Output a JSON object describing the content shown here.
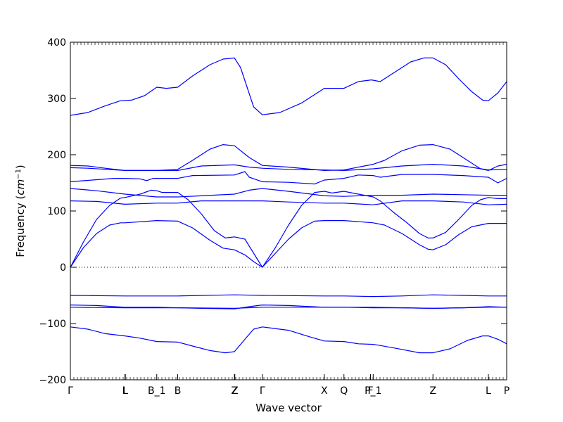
{
  "chart_data": {
    "type": "line",
    "title": "",
    "xlabel": "Wave vector",
    "ylabel_prefix": "Frequency (",
    "ylabel_unit_base": "cm",
    "ylabel_unit_exp": "−1",
    "ylabel_suffix": ")",
    "ylim": [
      -200,
      400
    ],
    "yticks": [
      -200,
      -100,
      0,
      100,
      200,
      300,
      400
    ],
    "xlim": [
      0,
      1
    ],
    "zero_line": true,
    "grid": false,
    "line_color": "#0000ff",
    "high_symmetry_points": [
      {
        "label": "Γ",
        "x": 0.0
      },
      {
        "label": "L",
        "x": 0.125
      },
      {
        "label": "L",
        "x": 0.126
      },
      {
        "label": "B_1",
        "x": 0.198
      },
      {
        "label": "B",
        "x": 0.246
      },
      {
        "label": "Z",
        "x": 0.376
      },
      {
        "label": "Z",
        "x": 0.377
      },
      {
        "label": "Γ",
        "x": 0.44
      },
      {
        "label": "X",
        "x": 0.582
      },
      {
        "label": "Q",
        "x": 0.627
      },
      {
        "label": "F",
        "x": 0.688
      },
      {
        "label": "P_1",
        "x": 0.694
      },
      {
        "label": "Z",
        "x": 0.831
      },
      {
        "label": "L",
        "x": 0.958
      },
      {
        "label": "P",
        "x": 1.0
      }
    ],
    "series": [
      {
        "values": [
          [
            0,
            270
          ],
          [
            0.04,
            275
          ],
          [
            0.08,
            287
          ],
          [
            0.115,
            296
          ],
          [
            0.14,
            297
          ],
          [
            0.17,
            305
          ],
          [
            0.198,
            320
          ],
          [
            0.22,
            318
          ],
          [
            0.246,
            320
          ],
          [
            0.28,
            340
          ],
          [
            0.32,
            360
          ],
          [
            0.35,
            370
          ],
          [
            0.376,
            372
          ],
          [
            0.39,
            355
          ],
          [
            0.405,
            320
          ],
          [
            0.42,
            285
          ],
          [
            0.44,
            271
          ],
          [
            0.48,
            275
          ],
          [
            0.53,
            292
          ],
          [
            0.582,
            318
          ],
          [
            0.627,
            318
          ],
          [
            0.66,
            330
          ],
          [
            0.69,
            333
          ],
          [
            0.71,
            330
          ],
          [
            0.74,
            345
          ],
          [
            0.78,
            365
          ],
          [
            0.81,
            372
          ],
          [
            0.831,
            372
          ],
          [
            0.86,
            360
          ],
          [
            0.89,
            335
          ],
          [
            0.92,
            312
          ],
          [
            0.945,
            297
          ],
          [
            0.958,
            296
          ],
          [
            0.98,
            310
          ],
          [
            1.0,
            330
          ]
        ]
      },
      {
        "values": [
          [
            0,
            181
          ],
          [
            0.04,
            180
          ],
          [
            0.08,
            176
          ],
          [
            0.125,
            172
          ],
          [
            0.198,
            172
          ],
          [
            0.246,
            174
          ],
          [
            0.28,
            190
          ],
          [
            0.32,
            210
          ],
          [
            0.35,
            218
          ],
          [
            0.376,
            216
          ],
          [
            0.41,
            195
          ],
          [
            0.44,
            181
          ],
          [
            0.5,
            178
          ],
          [
            0.582,
            172
          ],
          [
            0.627,
            173
          ],
          [
            0.694,
            183
          ],
          [
            0.72,
            190
          ],
          [
            0.76,
            207
          ],
          [
            0.8,
            217
          ],
          [
            0.831,
            218
          ],
          [
            0.87,
            210
          ],
          [
            0.91,
            190
          ],
          [
            0.94,
            175
          ],
          [
            0.958,
            172
          ],
          [
            0.98,
            180
          ],
          [
            1.0,
            183
          ]
        ]
      },
      {
        "values": [
          [
            0,
            177
          ],
          [
            0.04,
            176
          ],
          [
            0.125,
            172
          ],
          [
            0.198,
            172
          ],
          [
            0.246,
            172
          ],
          [
            0.3,
            180
          ],
          [
            0.376,
            182
          ],
          [
            0.41,
            178
          ],
          [
            0.44,
            176
          ],
          [
            0.5,
            174
          ],
          [
            0.582,
            173
          ],
          [
            0.627,
            172
          ],
          [
            0.694,
            175
          ],
          [
            0.76,
            180
          ],
          [
            0.831,
            183
          ],
          [
            0.9,
            180
          ],
          [
            0.958,
            173
          ],
          [
            1.0,
            174
          ]
        ]
      },
      {
        "values": [
          [
            0,
            152
          ],
          [
            0.05,
            155
          ],
          [
            0.1,
            158
          ],
          [
            0.125,
            158
          ],
          [
            0.16,
            157
          ],
          [
            0.175,
            154
          ],
          [
            0.19,
            158
          ],
          [
            0.246,
            158
          ],
          [
            0.28,
            163
          ],
          [
            0.376,
            164
          ],
          [
            0.4,
            170
          ],
          [
            0.41,
            160
          ],
          [
            0.44,
            152
          ],
          [
            0.5,
            151
          ],
          [
            0.56,
            148
          ],
          [
            0.582,
            155
          ],
          [
            0.627,
            158
          ],
          [
            0.66,
            164
          ],
          [
            0.694,
            163
          ],
          [
            0.71,
            160
          ],
          [
            0.76,
            165
          ],
          [
            0.831,
            165
          ],
          [
            0.9,
            163
          ],
          [
            0.958,
            160
          ],
          [
            0.98,
            150
          ],
          [
            1.0,
            158
          ]
        ]
      },
      {
        "values": [
          [
            0,
            140
          ],
          [
            0.06,
            136
          ],
          [
            0.125,
            130
          ],
          [
            0.198,
            125
          ],
          [
            0.246,
            125
          ],
          [
            0.3,
            127
          ],
          [
            0.376,
            130
          ],
          [
            0.41,
            137
          ],
          [
            0.44,
            140
          ],
          [
            0.5,
            135
          ],
          [
            0.582,
            127
          ],
          [
            0.627,
            126
          ],
          [
            0.694,
            128
          ],
          [
            0.76,
            128
          ],
          [
            0.831,
            130
          ],
          [
            0.9,
            129
          ],
          [
            0.958,
            128
          ],
          [
            1.0,
            128
          ]
        ]
      },
      {
        "values": [
          [
            0,
            118
          ],
          [
            0.06,
            117
          ],
          [
            0.125,
            112
          ],
          [
            0.198,
            114
          ],
          [
            0.246,
            114
          ],
          [
            0.3,
            118
          ],
          [
            0.376,
            118
          ],
          [
            0.44,
            118
          ],
          [
            0.5,
            116
          ],
          [
            0.582,
            114
          ],
          [
            0.627,
            114
          ],
          [
            0.694,
            111
          ],
          [
            0.76,
            118
          ],
          [
            0.831,
            118
          ],
          [
            0.9,
            116
          ],
          [
            0.958,
            111
          ],
          [
            1.0,
            112
          ]
        ]
      },
      {
        "values": [
          [
            0,
            0
          ],
          [
            0.03,
            45
          ],
          [
            0.06,
            85
          ],
          [
            0.09,
            110
          ],
          [
            0.115,
            123
          ],
          [
            0.125,
            124
          ],
          [
            0.16,
            130
          ],
          [
            0.185,
            137
          ],
          [
            0.198,
            136
          ],
          [
            0.21,
            133
          ],
          [
            0.246,
            133
          ],
          [
            0.27,
            120
          ],
          [
            0.3,
            95
          ],
          [
            0.33,
            65
          ],
          [
            0.355,
            52
          ],
          [
            0.376,
            54
          ],
          [
            0.4,
            50
          ],
          [
            0.42,
            25
          ],
          [
            0.44,
            0
          ],
          [
            0.47,
            35
          ],
          [
            0.5,
            75
          ],
          [
            0.53,
            110
          ],
          [
            0.56,
            133
          ],
          [
            0.582,
            135
          ],
          [
            0.6,
            132
          ],
          [
            0.627,
            135
          ],
          [
            0.66,
            130
          ],
          [
            0.694,
            125
          ],
          [
            0.71,
            118
          ],
          [
            0.74,
            98
          ],
          [
            0.77,
            80
          ],
          [
            0.8,
            60
          ],
          [
            0.82,
            52
          ],
          [
            0.831,
            52
          ],
          [
            0.86,
            62
          ],
          [
            0.89,
            85
          ],
          [
            0.92,
            110
          ],
          [
            0.94,
            120
          ],
          [
            0.958,
            124
          ],
          [
            0.98,
            122
          ],
          [
            1.0,
            122
          ]
        ]
      },
      {
        "values": [
          [
            0,
            0
          ],
          [
            0.03,
            35
          ],
          [
            0.06,
            60
          ],
          [
            0.09,
            75
          ],
          [
            0.115,
            79
          ],
          [
            0.125,
            79
          ],
          [
            0.198,
            83
          ],
          [
            0.246,
            82
          ],
          [
            0.28,
            70
          ],
          [
            0.32,
            48
          ],
          [
            0.35,
            34
          ],
          [
            0.376,
            31
          ],
          [
            0.4,
            22
          ],
          [
            0.42,
            10
          ],
          [
            0.44,
            0
          ],
          [
            0.47,
            25
          ],
          [
            0.5,
            50
          ],
          [
            0.53,
            70
          ],
          [
            0.56,
            82
          ],
          [
            0.582,
            83
          ],
          [
            0.627,
            83
          ],
          [
            0.694,
            79
          ],
          [
            0.72,
            75
          ],
          [
            0.76,
            60
          ],
          [
            0.8,
            40
          ],
          [
            0.82,
            32
          ],
          [
            0.831,
            31
          ],
          [
            0.86,
            40
          ],
          [
            0.89,
            58
          ],
          [
            0.92,
            72
          ],
          [
            0.958,
            78
          ],
          [
            1.0,
            78
          ]
        ]
      },
      {
        "values": [
          [
            0,
            -50
          ],
          [
            0.125,
            -51
          ],
          [
            0.198,
            -51
          ],
          [
            0.246,
            -51
          ],
          [
            0.376,
            -49
          ],
          [
            0.44,
            -50
          ],
          [
            0.582,
            -51
          ],
          [
            0.627,
            -51
          ],
          [
            0.694,
            -52
          ],
          [
            0.76,
            -51
          ],
          [
            0.831,
            -49
          ],
          [
            0.9,
            -50
          ],
          [
            0.958,
            -51
          ],
          [
            1.0,
            -51
          ]
        ]
      },
      {
        "values": [
          [
            0,
            -67
          ],
          [
            0.06,
            -68
          ],
          [
            0.125,
            -71
          ],
          [
            0.198,
            -71
          ],
          [
            0.246,
            -72
          ],
          [
            0.3,
            -73
          ],
          [
            0.376,
            -74
          ],
          [
            0.41,
            -70
          ],
          [
            0.44,
            -67
          ],
          [
            0.5,
            -68
          ],
          [
            0.582,
            -71
          ],
          [
            0.627,
            -71
          ],
          [
            0.694,
            -72
          ],
          [
            0.76,
            -72
          ],
          [
            0.831,
            -73
          ],
          [
            0.9,
            -72
          ],
          [
            0.958,
            -70
          ],
          [
            1.0,
            -71
          ]
        ]
      },
      {
        "values": [
          [
            0,
            -71
          ],
          [
            0.125,
            -72
          ],
          [
            0.198,
            -72
          ],
          [
            0.246,
            -72
          ],
          [
            0.376,
            -73
          ],
          [
            0.44,
            -71
          ],
          [
            0.582,
            -71
          ],
          [
            0.627,
            -71
          ],
          [
            0.694,
            -71
          ],
          [
            0.76,
            -72
          ],
          [
            0.831,
            -73
          ],
          [
            0.9,
            -72
          ],
          [
            0.958,
            -71
          ],
          [
            1.0,
            -71
          ]
        ]
      },
      {
        "values": [
          [
            0,
            -106
          ],
          [
            0.04,
            -110
          ],
          [
            0.08,
            -118
          ],
          [
            0.125,
            -122
          ],
          [
            0.16,
            -126
          ],
          [
            0.198,
            -132
          ],
          [
            0.246,
            -133
          ],
          [
            0.28,
            -140
          ],
          [
            0.32,
            -148
          ],
          [
            0.355,
            -152
          ],
          [
            0.376,
            -150
          ],
          [
            0.4,
            -128
          ],
          [
            0.42,
            -110
          ],
          [
            0.44,
            -106
          ],
          [
            0.5,
            -112
          ],
          [
            0.55,
            -124
          ],
          [
            0.582,
            -131
          ],
          [
            0.627,
            -132
          ],
          [
            0.66,
            -136
          ],
          [
            0.694,
            -137
          ],
          [
            0.71,
            -139
          ],
          [
            0.76,
            -146
          ],
          [
            0.8,
            -152
          ],
          [
            0.831,
            -152
          ],
          [
            0.87,
            -145
          ],
          [
            0.91,
            -130
          ],
          [
            0.945,
            -122
          ],
          [
            0.958,
            -122
          ],
          [
            0.98,
            -128
          ],
          [
            1.0,
            -136
          ]
        ]
      }
    ]
  }
}
